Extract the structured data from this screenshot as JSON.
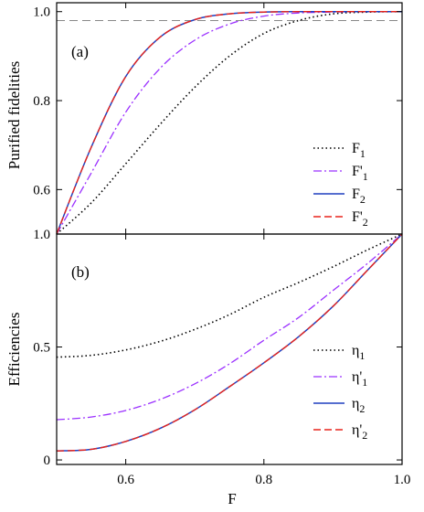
{
  "chart_data": [
    {
      "type": "line",
      "panel_label": "(a)",
      "xlabel": "",
      "ylabel": "Purified fidelities",
      "xlim": [
        0.5,
        1.0
      ],
      "ylim": [
        0.5,
        1.02
      ],
      "x_ticks": [
        0.6,
        0.8,
        1.0
      ],
      "x_tick_labels": [
        "",
        "",
        ""
      ],
      "y_ticks": [
        0.6,
        0.8,
        1.0
      ],
      "y_tick_labels": [
        "0.6",
        "0.8",
        "1.0"
      ],
      "reference_line": {
        "y": 0.98,
        "color": "#888888",
        "style": "dashed"
      },
      "legend_position": "center-right",
      "x": [
        0.5,
        0.55,
        0.6,
        0.65,
        0.7,
        0.75,
        0.8,
        0.85,
        0.9,
        0.95,
        1.0
      ],
      "series": [
        {
          "name": "F",
          "sub": "1",
          "prime": "",
          "color": "#000000",
          "dash": "1.5,3",
          "width": 1.6,
          "values": [
            0.5,
            0.57,
            0.658,
            0.747,
            0.83,
            0.9,
            0.951,
            0.98,
            0.995,
            0.999,
            1.0
          ]
        },
        {
          "name": "F",
          "sub": "1",
          "prime": "'",
          "color": "#9b30ff",
          "dash": "9,3,2,3",
          "width": 1.3,
          "values": [
            0.5,
            0.637,
            0.774,
            0.873,
            0.936,
            0.972,
            0.99,
            0.997,
            0.999,
            1.0,
            1.0
          ]
        },
        {
          "name": "F",
          "sub": "2",
          "prime": "",
          "color": "#1f3fbf",
          "dash": "",
          "width": 1.5,
          "values": [
            0.5,
            0.695,
            0.854,
            0.943,
            0.982,
            0.995,
            0.999,
            1.0,
            1.0,
            1.0,
            1.0
          ]
        },
        {
          "name": "F",
          "sub": "2",
          "prime": "'",
          "color": "#e8231b",
          "dash": "8,4",
          "width": 1.4,
          "values": [
            0.5,
            0.695,
            0.854,
            0.943,
            0.982,
            0.995,
            0.999,
            1.0,
            1.0,
            1.0,
            1.0
          ]
        }
      ]
    },
    {
      "type": "line",
      "panel_label": "(b)",
      "xlabel": "F",
      "ylabel": "Efficiencies",
      "xlim": [
        0.5,
        1.0
      ],
      "ylim": [
        -0.02,
        1.0
      ],
      "x_ticks": [
        0.6,
        0.8,
        1.0
      ],
      "x_tick_labels": [
        "0.6",
        "0.8",
        "1.0"
      ],
      "y_ticks": [
        0,
        0.5,
        1.0
      ],
      "y_tick_labels": [
        "0",
        "0.5",
        "1.0"
      ],
      "legend_position": "lower-right",
      "x": [
        0.5,
        0.55,
        0.6,
        0.65,
        0.7,
        0.75,
        0.8,
        0.85,
        0.9,
        0.95,
        1.0
      ],
      "series": [
        {
          "name": "η",
          "sub": "1",
          "prime": "",
          "color": "#000000",
          "dash": "1.5,3",
          "width": 1.6,
          "values": [
            0.455,
            0.463,
            0.487,
            0.525,
            0.578,
            0.643,
            0.72,
            0.785,
            0.855,
            0.93,
            1.0
          ]
        },
        {
          "name": "η",
          "sub": "1",
          "prime": "'",
          "color": "#9b30ff",
          "dash": "9,3,2,3",
          "width": 1.3,
          "values": [
            0.178,
            0.19,
            0.219,
            0.268,
            0.337,
            0.425,
            0.53,
            0.63,
            0.75,
            0.87,
            1.0
          ]
        },
        {
          "name": "η",
          "sub": "2",
          "prime": "",
          "color": "#1f3fbf",
          "dash": "",
          "width": 1.5,
          "values": [
            0.04,
            0.047,
            0.082,
            0.14,
            0.222,
            0.324,
            0.43,
            0.545,
            0.68,
            0.84,
            1.0
          ]
        },
        {
          "name": "η",
          "sub": "2",
          "prime": "'",
          "color": "#e8231b",
          "dash": "8,4",
          "width": 1.4,
          "values": [
            0.04,
            0.047,
            0.082,
            0.14,
            0.222,
            0.324,
            0.43,
            0.545,
            0.68,
            0.84,
            1.0
          ]
        }
      ]
    }
  ]
}
